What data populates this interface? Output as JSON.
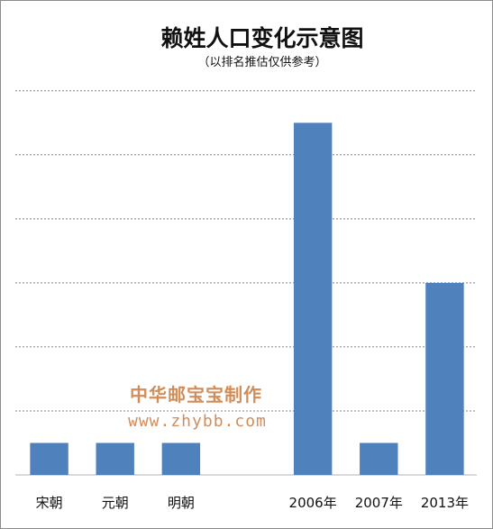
{
  "chart_data": {
    "type": "bar",
    "title": "赖姓人口变化示意图",
    "subtitle": "（以排名推估仅供参考）",
    "categories": [
      "宋朝",
      "元朝",
      "明朝",
      "",
      "2006年",
      "2007年",
      "2013年"
    ],
    "values": [
      1,
      1,
      1,
      null,
      11,
      1,
      6
    ],
    "ylim": [
      0,
      12.5
    ],
    "grid": true,
    "legend": "none",
    "colors": {
      "bar": "#4f81bd",
      "grid": "#808080",
      "axis": "#b3b3b3",
      "watermark": "#c8783c"
    }
  },
  "watermark": {
    "line1": "中华邮宝宝制作",
    "line2": "www.zhybb.com"
  }
}
